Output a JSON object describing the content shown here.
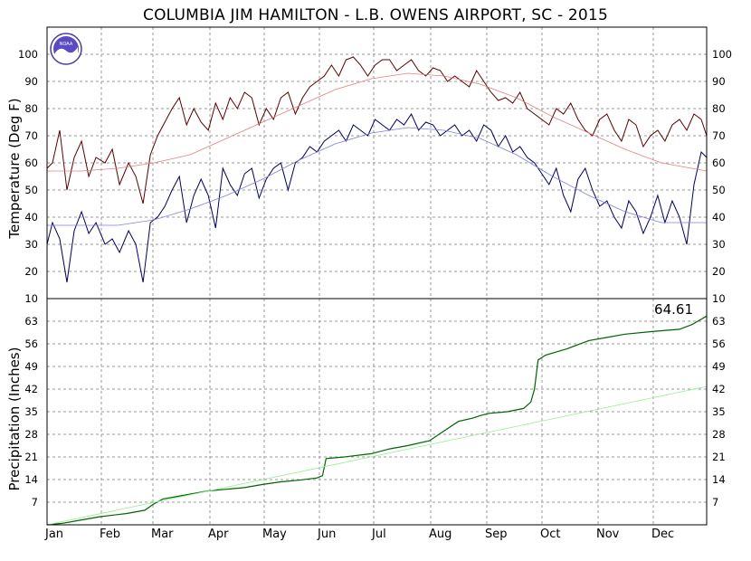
{
  "chart_data": {
    "type": "line",
    "title": "COLUMBIA JIM HAMILTON - L.B. OWENS AIRPORT, SC - 2015",
    "x_labels": [
      "Jan",
      "Feb",
      "Mar",
      "Apr",
      "May",
      "Jun",
      "Jul",
      "Aug",
      "Sep",
      "Oct",
      "Nov",
      "Dec"
    ],
    "grid": true,
    "logo": "NOAA",
    "temperature_panel": {
      "ylabel": "Temperature (Deg F)",
      "ylim": [
        10,
        110
      ],
      "yticks": [
        10,
        20,
        30,
        40,
        50,
        60,
        70,
        80,
        90,
        100
      ],
      "x_unit": "day of year",
      "series": [
        {
          "color": "#5a0000",
          "values": [
            [
              1,
              58
            ],
            [
              4,
              60
            ],
            [
              8,
              72
            ],
            [
              12,
              50
            ],
            [
              16,
              62
            ],
            [
              20,
              68
            ],
            [
              24,
              55
            ],
            [
              28,
              62
            ],
            [
              33,
              60
            ],
            [
              37,
              65
            ],
            [
              41,
              52
            ],
            [
              46,
              60
            ],
            [
              50,
              55
            ],
            [
              54,
              45
            ],
            [
              58,
              63
            ],
            [
              62,
              70
            ],
            [
              66,
              75
            ],
            [
              70,
              80
            ],
            [
              74,
              84
            ],
            [
              78,
              74
            ],
            [
              82,
              80
            ],
            [
              86,
              75
            ],
            [
              90,
              72
            ],
            [
              94,
              82
            ],
            [
              98,
              76
            ],
            [
              102,
              84
            ],
            [
              106,
              80
            ],
            [
              110,
              86
            ],
            [
              114,
              84
            ],
            [
              118,
              74
            ],
            [
              122,
              80
            ],
            [
              126,
              76
            ],
            [
              130,
              84
            ],
            [
              134,
              86
            ],
            [
              138,
              78
            ],
            [
              142,
              84
            ],
            [
              146,
              88
            ],
            [
              150,
              90
            ],
            [
              154,
              92
            ],
            [
              158,
              96
            ],
            [
              162,
              92
            ],
            [
              166,
              98
            ],
            [
              170,
              99
            ],
            [
              174,
              96
            ],
            [
              178,
              92
            ],
            [
              182,
              96
            ],
            [
              186,
              98
            ],
            [
              190,
              98
            ],
            [
              194,
              94
            ],
            [
              198,
              96
            ],
            [
              202,
              98
            ],
            [
              206,
              94
            ],
            [
              210,
              92
            ],
            [
              214,
              95
            ],
            [
              218,
              94
            ],
            [
              222,
              90
            ],
            [
              226,
              92
            ],
            [
              230,
              90
            ],
            [
              234,
              88
            ],
            [
              238,
              94
            ],
            [
              242,
              90
            ],
            [
              246,
              86
            ],
            [
              250,
              83
            ],
            [
              254,
              84
            ],
            [
              258,
              82
            ],
            [
              262,
              86
            ],
            [
              266,
              80
            ],
            [
              270,
              78
            ],
            [
              274,
              76
            ],
            [
              278,
              74
            ],
            [
              282,
              80
            ],
            [
              286,
              78
            ],
            [
              290,
              82
            ],
            [
              294,
              76
            ],
            [
              298,
              72
            ],
            [
              302,
              70
            ],
            [
              306,
              76
            ],
            [
              310,
              78
            ],
            [
              314,
              72
            ],
            [
              318,
              68
            ],
            [
              322,
              76
            ],
            [
              326,
              74
            ],
            [
              330,
              66
            ],
            [
              334,
              70
            ],
            [
              338,
              72
            ],
            [
              342,
              68
            ],
            [
              346,
              74
            ],
            [
              350,
              76
            ],
            [
              354,
              72
            ],
            [
              358,
              78
            ],
            [
              362,
              76
            ],
            [
              365,
              70
            ]
          ]
        },
        {
          "color": "#00005a",
          "values": [
            [
              1,
              30
            ],
            [
              4,
              38
            ],
            [
              8,
              32
            ],
            [
              12,
              16
            ],
            [
              16,
              35
            ],
            [
              20,
              42
            ],
            [
              24,
              34
            ],
            [
              28,
              38
            ],
            [
              33,
              30
            ],
            [
              37,
              32
            ],
            [
              41,
              27
            ],
            [
              46,
              35
            ],
            [
              50,
              30
            ],
            [
              54,
              16
            ],
            [
              58,
              38
            ],
            [
              62,
              40
            ],
            [
              66,
              44
            ],
            [
              70,
              50
            ],
            [
              74,
              55
            ],
            [
              78,
              38
            ],
            [
              82,
              48
            ],
            [
              86,
              54
            ],
            [
              90,
              48
            ],
            [
              94,
              36
            ],
            [
              98,
              58
            ],
            [
              102,
              52
            ],
            [
              106,
              48
            ],
            [
              110,
              56
            ],
            [
              114,
              58
            ],
            [
              118,
              47
            ],
            [
              122,
              54
            ],
            [
              126,
              58
            ],
            [
              130,
              60
            ],
            [
              134,
              50
            ],
            [
              138,
              60
            ],
            [
              142,
              62
            ],
            [
              146,
              66
            ],
            [
              150,
              64
            ],
            [
              154,
              68
            ],
            [
              158,
              70
            ],
            [
              162,
              72
            ],
            [
              166,
              68
            ],
            [
              170,
              74
            ],
            [
              174,
              72
            ],
            [
              178,
              70
            ],
            [
              182,
              76
            ],
            [
              186,
              74
            ],
            [
              190,
              72
            ],
            [
              194,
              76
            ],
            [
              198,
              74
            ],
            [
              202,
              78
            ],
            [
              206,
              72
            ],
            [
              210,
              75
            ],
            [
              214,
              74
            ],
            [
              218,
              70
            ],
            [
              222,
              72
            ],
            [
              226,
              74
            ],
            [
              230,
              70
            ],
            [
              234,
              72
            ],
            [
              238,
              68
            ],
            [
              242,
              74
            ],
            [
              246,
              72
            ],
            [
              250,
              66
            ],
            [
              254,
              70
            ],
            [
              258,
              64
            ],
            [
              262,
              66
            ],
            [
              266,
              62
            ],
            [
              270,
              60
            ],
            [
              274,
              56
            ],
            [
              278,
              52
            ],
            [
              282,
              58
            ],
            [
              286,
              48
            ],
            [
              290,
              42
            ],
            [
              294,
              54
            ],
            [
              298,
              58
            ],
            [
              302,
              50
            ],
            [
              306,
              44
            ],
            [
              310,
              46
            ],
            [
              314,
              40
            ],
            [
              318,
              36
            ],
            [
              322,
              46
            ],
            [
              326,
              42
            ],
            [
              330,
              34
            ],
            [
              334,
              40
            ],
            [
              338,
              48
            ],
            [
              342,
              38
            ],
            [
              346,
              46
            ],
            [
              350,
              40
            ],
            [
              354,
              30
            ],
            [
              358,
              52
            ],
            [
              362,
              64
            ],
            [
              365,
              62
            ]
          ]
        },
        {
          "color": "#e08080",
          "values": [
            [
              1,
              57
            ],
            [
              20,
              57
            ],
            [
              40,
              58
            ],
            [
              60,
              60
            ],
            [
              80,
              63
            ],
            [
              100,
              69
            ],
            [
              120,
              75
            ],
            [
              140,
              81
            ],
            [
              160,
              87
            ],
            [
              180,
              91
            ],
            [
              200,
              93
            ],
            [
              220,
              92
            ],
            [
              240,
              89
            ],
            [
              260,
              84
            ],
            [
              280,
              77
            ],
            [
              300,
              71
            ],
            [
              320,
              65
            ],
            [
              340,
              60
            ],
            [
              365,
              57
            ]
          ]
        },
        {
          "color": "#8080e0",
          "values": [
            [
              1,
              37
            ],
            [
              20,
              37
            ],
            [
              40,
              37
            ],
            [
              60,
              39
            ],
            [
              80,
              43
            ],
            [
              100,
              48
            ],
            [
              120,
              54
            ],
            [
              140,
              61
            ],
            [
              160,
              67
            ],
            [
              180,
              71
            ],
            [
              200,
              73
            ],
            [
              220,
              72
            ],
            [
              240,
              69
            ],
            [
              260,
              63
            ],
            [
              280,
              55
            ],
            [
              300,
              48
            ],
            [
              320,
              42
            ],
            [
              340,
              38
            ],
            [
              365,
              38
            ]
          ]
        }
      ]
    },
    "precipitation_panel": {
      "ylabel": "Precipitation (Inches)",
      "ylim": [
        0,
        70
      ],
      "yticks": [
        7,
        14,
        21,
        28,
        35,
        42,
        49,
        56,
        63
      ],
      "annual_total_label": "64.61",
      "series": [
        {
          "color": "#006400",
          "values": [
            [
              1,
              0
            ],
            [
              10,
              0.5
            ],
            [
              20,
              1.5
            ],
            [
              30,
              2.5
            ],
            [
              45,
              3.5
            ],
            [
              55,
              4.5
            ],
            [
              60,
              6.5
            ],
            [
              65,
              8
            ],
            [
              75,
              9
            ],
            [
              90,
              10.5
            ],
            [
              100,
              11
            ],
            [
              110,
              11.5
            ],
            [
              120,
              12.5
            ],
            [
              130,
              13.3
            ],
            [
              140,
              13.8
            ],
            [
              150,
              14.5
            ],
            [
              153,
              15.2
            ],
            [
              155,
              20.5
            ],
            [
              165,
              21
            ],
            [
              180,
              22
            ],
            [
              190,
              23.5
            ],
            [
              200,
              24.5
            ],
            [
              212,
              26
            ],
            [
              220,
              29
            ],
            [
              228,
              32
            ],
            [
              236,
              33
            ],
            [
              240,
              33.8
            ],
            [
              245,
              34.5
            ],
            [
              255,
              35
            ],
            [
              264,
              36
            ],
            [
              268,
              38
            ],
            [
              270,
              42
            ],
            [
              272,
              51
            ],
            [
              276,
              52.5
            ],
            [
              288,
              54.5
            ],
            [
              300,
              57
            ],
            [
              310,
              58
            ],
            [
              320,
              59
            ],
            [
              335,
              59.8
            ],
            [
              350,
              60.5
            ],
            [
              357,
              62
            ],
            [
              365,
              64.61
            ]
          ]
        },
        {
          "color": "#90ee90",
          "values": [
            [
              1,
              0
            ],
            [
              365,
              42.8
            ]
          ]
        }
      ]
    }
  }
}
